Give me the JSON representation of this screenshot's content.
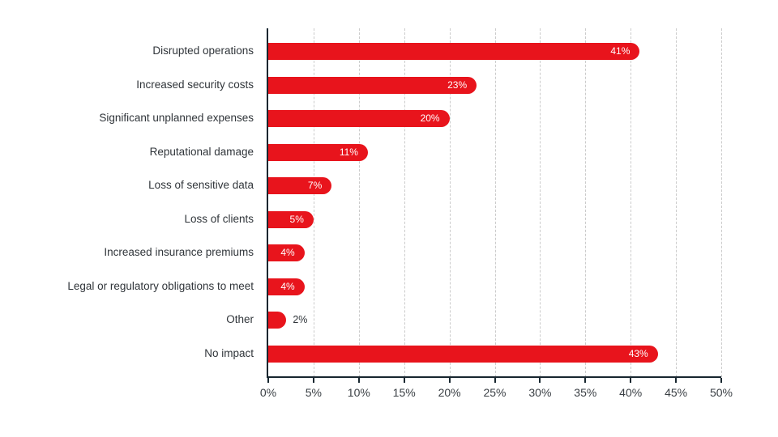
{
  "chart_data": {
    "type": "bar",
    "orientation": "horizontal",
    "title": "",
    "categories": [
      "Disrupted operations",
      "Increased security costs",
      "Significant unplanned expenses",
      "Reputational damage",
      "Loss of sensitive data",
      "Loss of clients",
      "Increased insurance premiums",
      "Legal or regulatory obligations to meet",
      "Other",
      "No impact"
    ],
    "values": [
      41,
      23,
      20,
      11,
      7,
      5,
      4,
      4,
      2,
      43
    ],
    "value_labels": [
      "41%",
      "23%",
      "20%",
      "11%",
      "7%",
      "5%",
      "4%",
      "4%",
      "2%",
      "43%"
    ],
    "value_label_positions": [
      "inside",
      "inside",
      "inside",
      "inside",
      "inside",
      "inside",
      "inside",
      "inside",
      "outside",
      "inside"
    ],
    "xlabel": "",
    "ylabel": "",
    "xlim": [
      0,
      50
    ],
    "x_ticks": [
      0,
      5,
      10,
      15,
      20,
      25,
      30,
      35,
      40,
      45,
      50
    ],
    "x_tick_labels": [
      "0%",
      "5%",
      "10%",
      "15%",
      "20%",
      "25%",
      "30%",
      "35%",
      "40%",
      "45%",
      "50%"
    ],
    "grid": "vertical-dashed",
    "legend": "none",
    "colors": {
      "bar": "#E8141C",
      "axis": "#17262F",
      "gridline": "#CBCBCB",
      "category_label": "#30353A",
      "tick_label": "#3A3F44",
      "value_label_inside": "#FFFFFF",
      "value_label_outside": "#30353A"
    }
  }
}
